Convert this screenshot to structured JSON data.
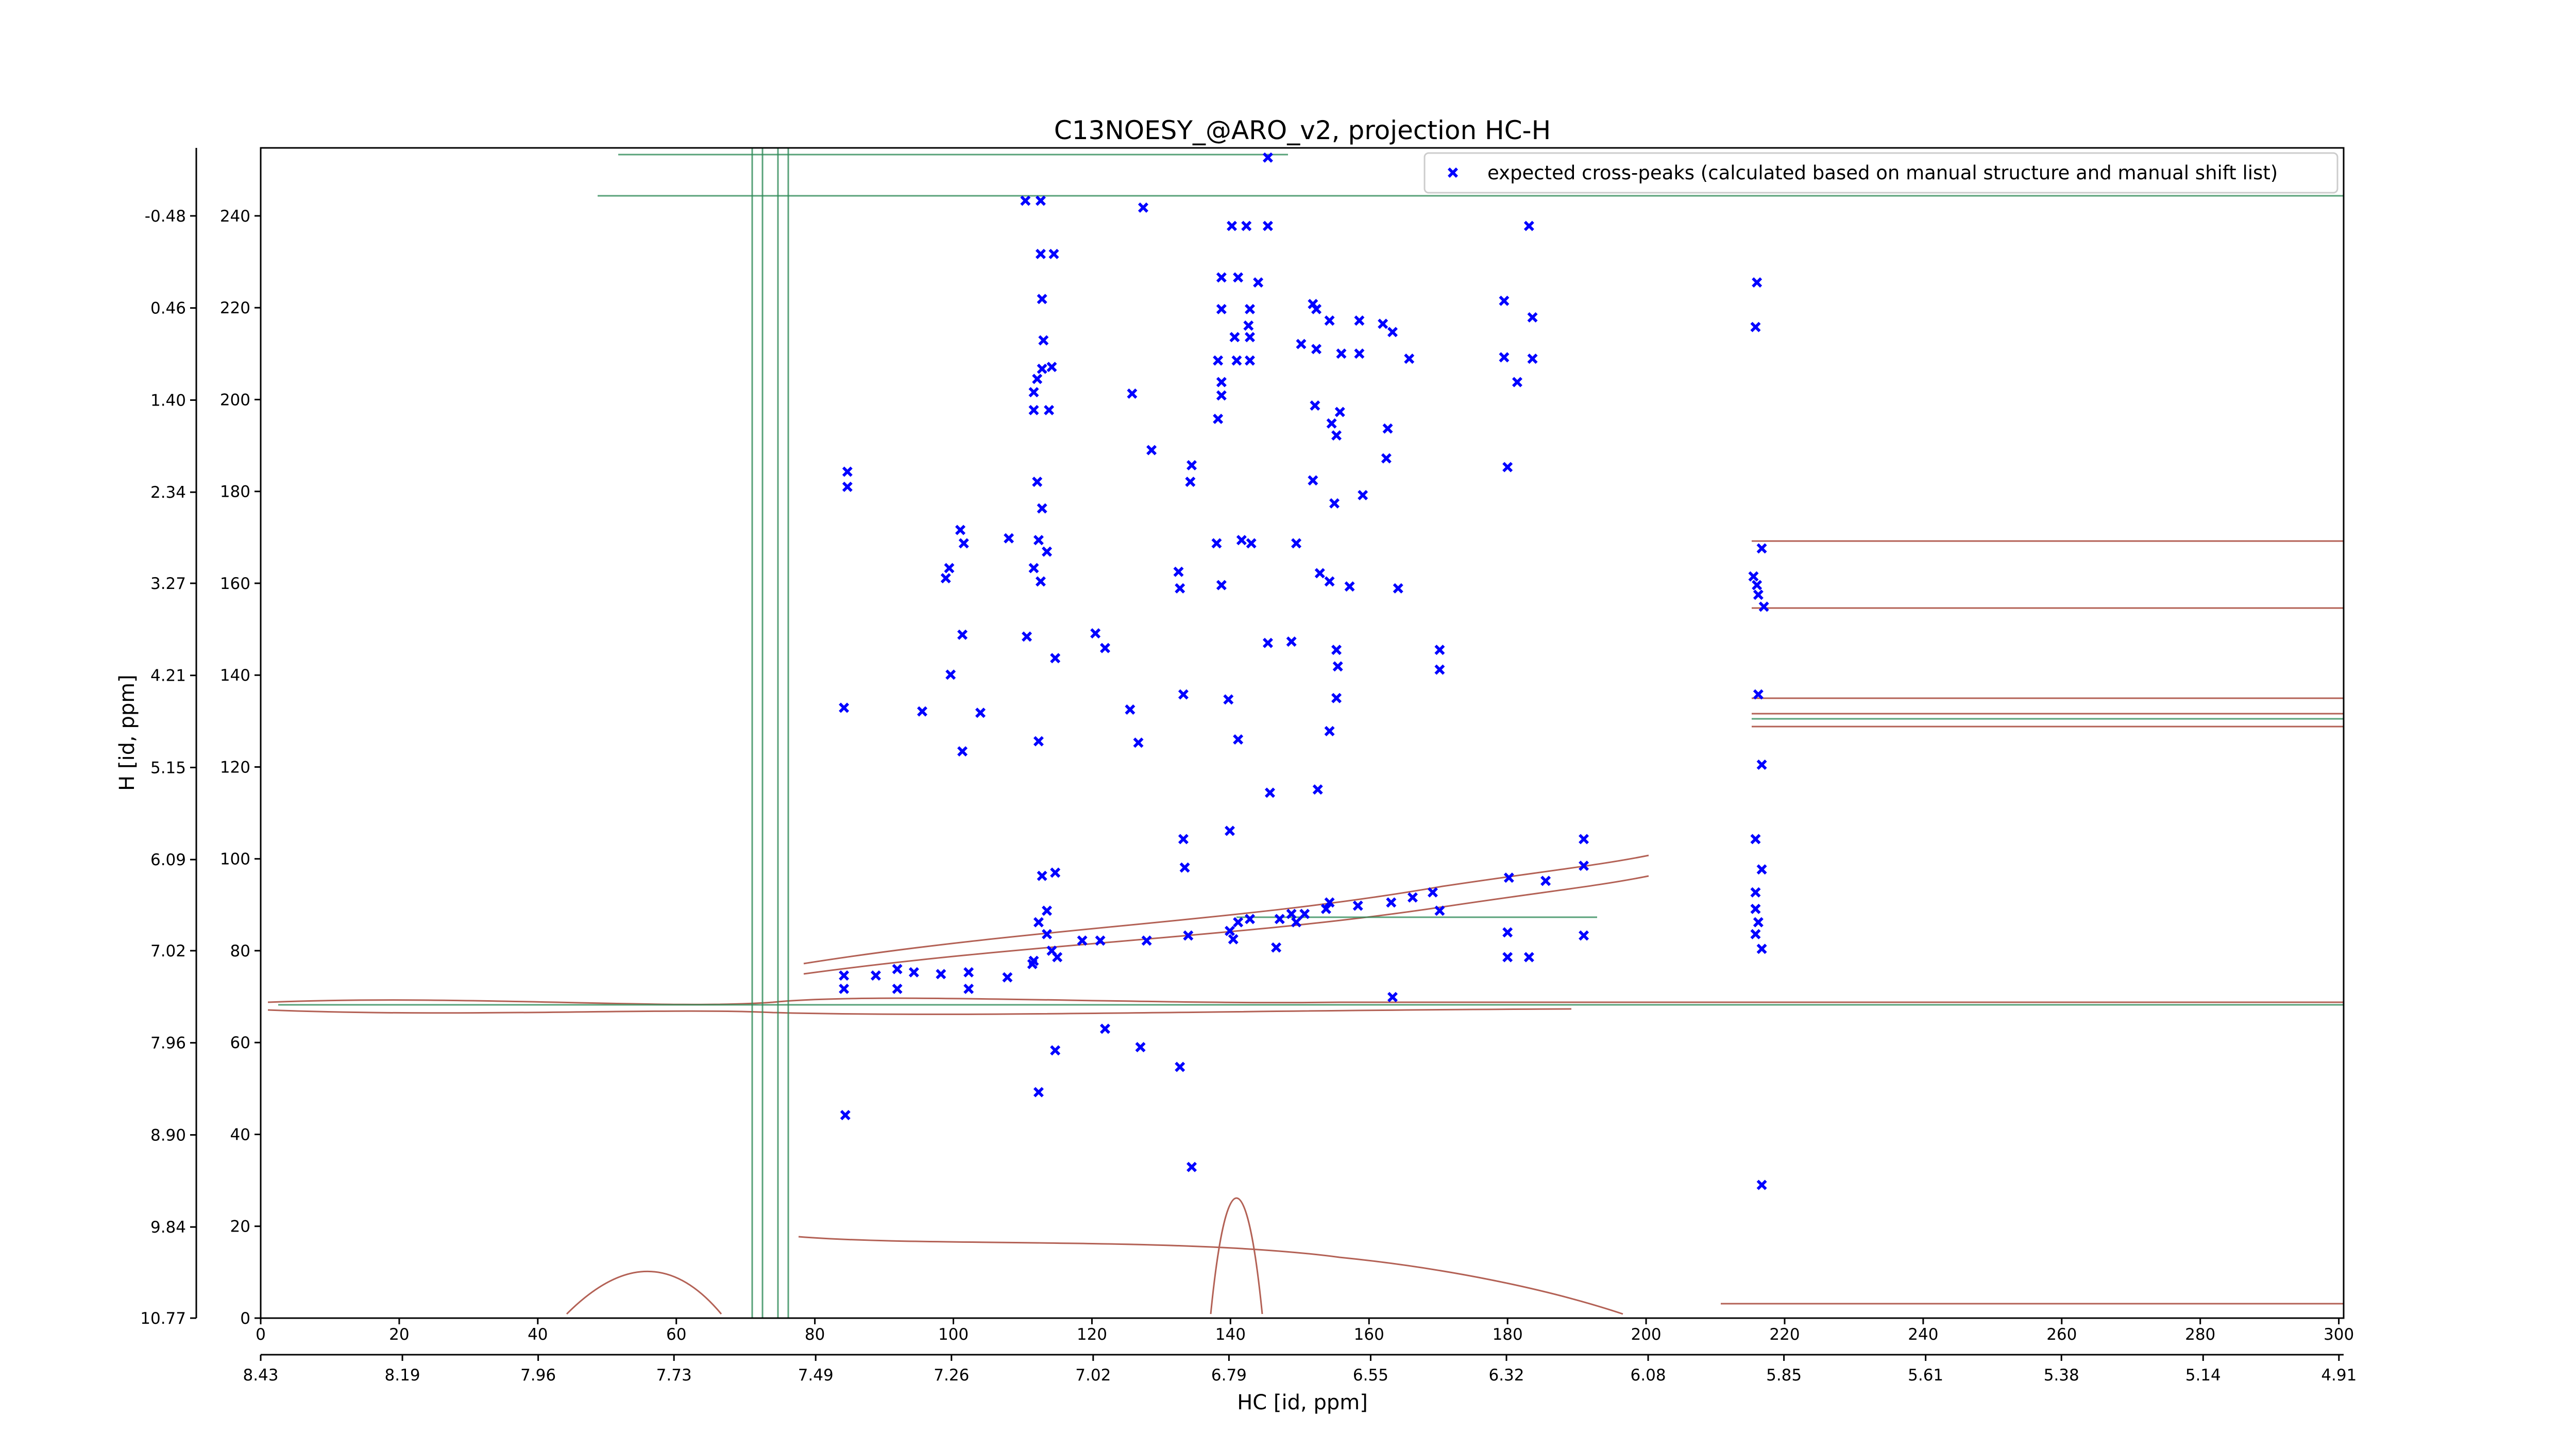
{
  "chart_data": {
    "type": "scatter",
    "title": "C13NOESY_@ARO_v2, projection HC-H",
    "xlabel": "HC [id, ppm]",
    "ylabel": "H [id, ppm]",
    "xlim": [
      0,
      300.7
    ],
    "xticks": [
      0,
      20,
      40,
      60,
      80,
      100,
      120,
      140,
      160,
      180,
      200,
      220,
      240,
      260,
      280,
      300
    ],
    "x2lim": [
      8.43,
      4.902
    ],
    "x2ticks": [
      8.43,
      8.19,
      7.96,
      7.73,
      7.49,
      7.26,
      7.02,
      6.79,
      6.55,
      6.32,
      6.08,
      5.85,
      5.61,
      5.38,
      5.14,
      4.91
    ],
    "ylim": [
      0,
      254.8
    ],
    "yticks": [
      0,
      20,
      40,
      60,
      80,
      100,
      120,
      140,
      160,
      180,
      200,
      220,
      240
    ],
    "y2lim": [
      10.77,
      -1.174
    ],
    "y2ticks": [
      10.77,
      9.84,
      {
        "value": 8.9,
        "label": "8.90"
      },
      7.96,
      7.02,
      6.09,
      5.15,
      4.21,
      3.27,
      2.34,
      {
        "value": 1.4,
        "label": "1.40"
      },
      0.46,
      -0.48
    ],
    "legend": "upper right",
    "series": [
      {
        "name": "expected cross-peaks (calculated based on manual structure and manual shift list)",
        "color": "#0000ff",
        "x": [
          145.4,
          110.4,
          112.6,
          127.4,
          140.2,
          142.3,
          145.4,
          183.1,
          112.6,
          114.5,
          138.7,
          141.1,
          144,
          216,
          112.8,
          151.9,
          152.4,
          138.7,
          142.8,
          179.5,
          183.6,
          154.3,
          158.6,
          162,
          142.6,
          163.4,
          215.8,
          140.6,
          142.8,
          150.2,
          152.4,
          156,
          158.6,
          165.8,
          179.5,
          183.6,
          113,
          112.8,
          114.2,
          138.2,
          140.9,
          142.8,
          181.4,
          138.7,
          112.1,
          111.6,
          125.8,
          138.7,
          152.2,
          155.8,
          111.6,
          113.8,
          138.2,
          154.6,
          155.3,
          162.7,
          162.5,
          128.6,
          180,
          134.4,
          134.2,
          84.7,
          84.7,
          112.1,
          112.8,
          151.9,
          155,
          159.1,
          101,
          101.5,
          108,
          112.3,
          113.5,
          99.4,
          98.9,
          111.6,
          112.6,
          138,
          141.6,
          143,
          149.5,
          132.5,
          132.7,
          138.7,
          152.9,
          154.3,
          157.2,
          164.2,
          215.5,
          216,
          216.2,
          217,
          216.7,
          110.6,
          120.5,
          121.9,
          114.7,
          145.4,
          148.8,
          101.3,
          99.6,
          155.3,
          155.5,
          170.2,
          170.2,
          84.2,
          95.5,
          103.9,
          112.3,
          125.5,
          126.7,
          133.2,
          139.7,
          141.1,
          155.3,
          154.3,
          216.2,
          216.7,
          101.3,
          145.7,
          152.6,
          139.9,
          133.2,
          112.8,
          114.7,
          133.4,
          191,
          215.8,
          216.7,
          215.8,
          215.8,
          216.2,
          215.8,
          216.7,
          191,
          180.2,
          185.5,
          112.3,
          113.5,
          113.5,
          111.6,
          115,
          84.2,
          84.2,
          88.8,
          91.9,
          91.9,
          94.3,
          98.2,
          102.2,
          102.2,
          107.8,
          111.4,
          114.2,
          118.6,
          121.2,
          127.9,
          133.9,
          139.9,
          141.1,
          142.8,
          147.1,
          148.8,
          150.7,
          154.3,
          158.4,
          163.2,
          166.3,
          169.2,
          170.2,
          180,
          183.1,
          180,
          191,
          163.4,
          121.9,
          114.7,
          127,
          132.7,
          134.4,
          112.3,
          84.4,
          216.7,
          146.6,
          140.4,
          153.8,
          149.5
        ],
        "values": [
          252.7,
          243.3,
          243.3,
          241.8,
          237.8,
          237.8,
          237.8,
          237.8,
          231.7,
          231.7,
          226.6,
          226.6,
          225.5,
          225.5,
          221.9,
          220.8,
          219.7,
          219.7,
          219.7,
          221.5,
          217.9,
          217.2,
          217.2,
          216.5,
          216.1,
          214.7,
          215.8,
          213.6,
          213.6,
          212.1,
          211,
          210,
          210,
          208.9,
          209.2,
          208.9,
          212.9,
          206.7,
          207.1,
          208.5,
          208.5,
          208.5,
          203.8,
          203.8,
          204.5,
          201.6,
          201.3,
          200.9,
          198.7,
          197.3,
          197.7,
          197.7,
          195.8,
          194.8,
          192.2,
          193.7,
          187.2,
          189,
          185.3,
          185.7,
          182.1,
          184.3,
          181,
          182.1,
          176.3,
          182.4,
          177.4,
          179.2,
          171.6,
          168.7,
          169.8,
          169.4,
          166.9,
          163.3,
          161.1,
          163.3,
          160.4,
          168.7,
          169.4,
          168.7,
          168.7,
          162.5,
          158.9,
          159.6,
          162.2,
          160.4,
          159.3,
          158.9,
          161.5,
          159.6,
          157.5,
          154.9,
          167.6,
          148.4,
          149.1,
          145.9,
          143.7,
          147,
          147.3,
          148.8,
          140.1,
          145.5,
          141.9,
          145.5,
          141.2,
          132.9,
          132.1,
          131.8,
          125.6,
          132.5,
          125.3,
          135.8,
          134.7,
          126,
          135,
          127.8,
          135.8,
          120.5,
          123.4,
          114.4,
          115.1,
          106.1,
          104.3,
          96.3,
          97,
          98.1,
          104.3,
          104.3,
          97.7,
          92.7,
          89.1,
          86.2,
          83.6,
          80.4,
          98.5,
          95.9,
          95.2,
          86.2,
          88.7,
          83.6,
          77.8,
          78.6,
          74.6,
          71.7,
          74.6,
          76,
          71.7,
          75.3,
          74.9,
          75.3,
          71.7,
          74.2,
          77.1,
          80,
          82.2,
          82.2,
          82.2,
          83.3,
          84.3,
          86.2,
          86.9,
          86.9,
          88,
          88,
          90.5,
          89.8,
          90.5,
          91.6,
          92.7,
          88.7,
          84,
          78.6,
          78.6,
          83.3,
          69.9,
          63,
          58.3,
          59,
          54.7,
          32.9,
          49.2,
          44.2,
          29,
          80.7,
          82.5,
          89.1,
          86.2
        ]
      }
    ]
  }
}
